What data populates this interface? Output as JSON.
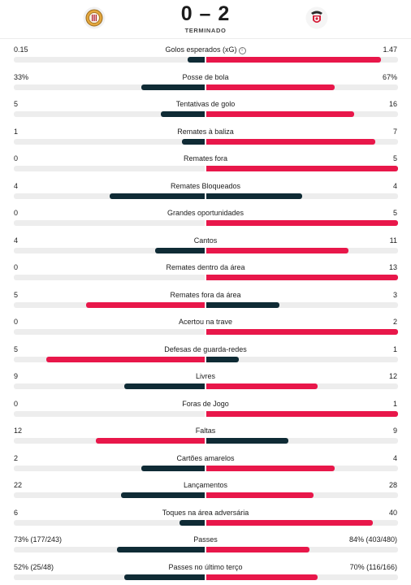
{
  "match": {
    "score": "0 – 2",
    "status": "TERMINADO",
    "home_logo_icon": "home-team-crest-icon",
    "away_logo_icon": "benfica-eagle-crest-icon"
  },
  "colors": {
    "dark": "#0f2b35",
    "accent": "#e8174a",
    "track": "#ededed"
  },
  "stats": [
    {
      "label": "Golos esperados (xG)",
      "home": "0.15",
      "away": "1.47",
      "home_share": 0.09,
      "away_share": 0.91,
      "home_dark": true,
      "away_dark": false,
      "info": true
    },
    {
      "label": "Posse de bola",
      "home": "33%",
      "away": "67%",
      "home_share": 0.33,
      "away_share": 0.67,
      "home_dark": true,
      "away_dark": false
    },
    {
      "label": "Tentativas de golo",
      "home": "5",
      "away": "16",
      "home_share": 0.23,
      "away_share": 0.77,
      "home_dark": true,
      "away_dark": false
    },
    {
      "label": "Remates à baliza",
      "home": "1",
      "away": "7",
      "home_share": 0.12,
      "away_share": 0.88,
      "home_dark": true,
      "away_dark": false
    },
    {
      "label": "Remates fora",
      "home": "0",
      "away": "5",
      "home_share": 0,
      "away_share": 1,
      "home_dark": true,
      "away_dark": false
    },
    {
      "label": "Remates Bloqueados",
      "home": "4",
      "away": "4",
      "home_share": 0.5,
      "away_share": 0.5,
      "home_dark": true,
      "away_dark": true
    },
    {
      "label": "Grandes oportunidades",
      "home": "0",
      "away": "5",
      "home_share": 0,
      "away_share": 1,
      "home_dark": true,
      "away_dark": false
    },
    {
      "label": "Cantos",
      "home": "4",
      "away": "11",
      "home_share": 0.26,
      "away_share": 0.74,
      "home_dark": true,
      "away_dark": false
    },
    {
      "label": "Remates dentro da área",
      "home": "0",
      "away": "13",
      "home_share": 0,
      "away_share": 1,
      "home_dark": true,
      "away_dark": false
    },
    {
      "label": "Remates fora da área",
      "home": "5",
      "away": "3",
      "home_share": 0.62,
      "away_share": 0.38,
      "home_dark": false,
      "away_dark": true
    },
    {
      "label": "Acertou na trave",
      "home": "0",
      "away": "2",
      "home_share": 0,
      "away_share": 1,
      "home_dark": true,
      "away_dark": false
    },
    {
      "label": "Defesas de guarda-redes",
      "home": "5",
      "away": "1",
      "home_share": 0.83,
      "away_share": 0.17,
      "home_dark": false,
      "away_dark": true
    },
    {
      "label": "Livres",
      "home": "9",
      "away": "12",
      "home_share": 0.42,
      "away_share": 0.58,
      "home_dark": true,
      "away_dark": false
    },
    {
      "label": "Foras de Jogo",
      "home": "0",
      "away": "1",
      "home_share": 0,
      "away_share": 1,
      "home_dark": true,
      "away_dark": false
    },
    {
      "label": "Faltas",
      "home": "12",
      "away": "9",
      "home_share": 0.57,
      "away_share": 0.43,
      "home_dark": false,
      "away_dark": true
    },
    {
      "label": "Cartões amarelos",
      "home": "2",
      "away": "4",
      "home_share": 0.33,
      "away_share": 0.67,
      "home_dark": true,
      "away_dark": false
    },
    {
      "label": "Lançamentos",
      "home": "22",
      "away": "28",
      "home_share": 0.44,
      "away_share": 0.56,
      "home_dark": true,
      "away_dark": false
    },
    {
      "label": "Toques na área adversária",
      "home": "6",
      "away": "40",
      "home_share": 0.13,
      "away_share": 0.87,
      "home_dark": true,
      "away_dark": false
    },
    {
      "label": "Passes",
      "home": "73% (177/243)",
      "away": "84% (403/480)",
      "home_share": 0.46,
      "away_share": 0.54,
      "home_dark": true,
      "away_dark": false
    },
    {
      "label": "Passes no último terço",
      "home": "52% (25/48)",
      "away": "70% (116/166)",
      "home_share": 0.42,
      "away_share": 0.58,
      "home_dark": true,
      "away_dark": false
    }
  ]
}
